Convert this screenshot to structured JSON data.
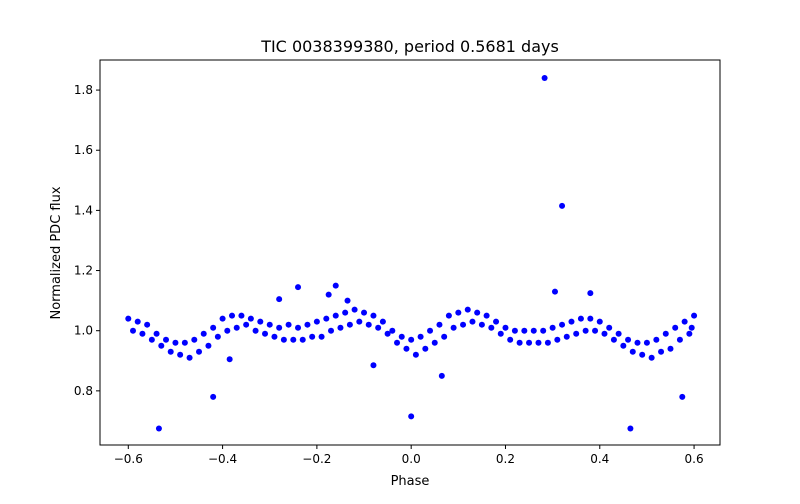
{
  "chart_data": {
    "type": "scatter",
    "title": "TIC 0038399380, period 0.5681 days",
    "xlabel": "Phase",
    "ylabel": "Normalized PDC flux",
    "xlim": [
      -0.66,
      0.655
    ],
    "ylim": [
      0.62,
      1.9
    ],
    "xticks": [
      -0.6,
      -0.4,
      -0.2,
      0.0,
      0.2,
      0.4,
      0.6
    ],
    "xtick_labels": [
      "−0.6",
      "−0.4",
      "−0.2",
      "0.0",
      "0.2",
      "0.4",
      "0.6"
    ],
    "yticks": [
      0.8,
      1.0,
      1.2,
      1.4,
      1.6,
      1.8
    ],
    "ytick_labels": [
      "0.8",
      "1.0",
      "1.2",
      "1.4",
      "1.6",
      "1.8"
    ],
    "grid": false,
    "marker_color": "#0000ff",
    "series": [
      {
        "name": "flux",
        "points": [
          [
            -0.6,
            1.04
          ],
          [
            -0.59,
            1.0
          ],
          [
            -0.58,
            1.03
          ],
          [
            -0.57,
            0.99
          ],
          [
            -0.56,
            1.02
          ],
          [
            -0.55,
            0.97
          ],
          [
            -0.54,
            0.99
          ],
          [
            -0.53,
            0.95
          ],
          [
            -0.52,
            0.97
          ],
          [
            -0.51,
            0.93
          ],
          [
            -0.5,
            0.96
          ],
          [
            -0.49,
            0.92
          ],
          [
            -0.48,
            0.96
          ],
          [
            -0.47,
            0.91
          ],
          [
            -0.46,
            0.97
          ],
          [
            -0.45,
            0.93
          ],
          [
            -0.44,
            0.99
          ],
          [
            -0.43,
            0.95
          ],
          [
            -0.42,
            1.01
          ],
          [
            -0.41,
            0.98
          ],
          [
            -0.4,
            1.04
          ],
          [
            -0.39,
            1.0
          ],
          [
            -0.38,
            1.05
          ],
          [
            -0.37,
            1.01
          ],
          [
            -0.36,
            1.05
          ],
          [
            -0.35,
            1.02
          ],
          [
            -0.34,
            1.04
          ],
          [
            -0.33,
            1.0
          ],
          [
            -0.32,
            1.03
          ],
          [
            -0.31,
            0.99
          ],
          [
            -0.3,
            1.02
          ],
          [
            -0.29,
            0.98
          ],
          [
            -0.28,
            1.01
          ],
          [
            -0.27,
            0.97
          ],
          [
            -0.26,
            1.02
          ],
          [
            -0.25,
            0.97
          ],
          [
            -0.24,
            1.01
          ],
          [
            -0.23,
            0.97
          ],
          [
            -0.22,
            1.02
          ],
          [
            -0.21,
            0.98
          ],
          [
            -0.2,
            1.03
          ],
          [
            -0.19,
            0.98
          ],
          [
            -0.18,
            1.04
          ],
          [
            -0.17,
            1.0
          ],
          [
            -0.16,
            1.05
          ],
          [
            -0.15,
            1.01
          ],
          [
            -0.14,
            1.06
          ],
          [
            -0.13,
            1.02
          ],
          [
            -0.12,
            1.07
          ],
          [
            -0.11,
            1.03
          ],
          [
            -0.1,
            1.06
          ],
          [
            -0.09,
            1.02
          ],
          [
            -0.08,
            1.05
          ],
          [
            -0.07,
            1.01
          ],
          [
            -0.06,
            1.03
          ],
          [
            -0.05,
            0.99
          ],
          [
            -0.04,
            1.0
          ],
          [
            -0.03,
            0.96
          ],
          [
            -0.02,
            0.98
          ],
          [
            -0.01,
            0.94
          ],
          [
            0.0,
            0.97
          ],
          [
            0.01,
            0.92
          ],
          [
            0.02,
            0.98
          ],
          [
            0.03,
            0.94
          ],
          [
            0.04,
            1.0
          ],
          [
            0.05,
            0.96
          ],
          [
            0.06,
            1.02
          ],
          [
            0.07,
            0.98
          ],
          [
            0.08,
            1.05
          ],
          [
            0.09,
            1.01
          ],
          [
            0.1,
            1.06
          ],
          [
            0.11,
            1.02
          ],
          [
            0.12,
            1.07
          ],
          [
            0.13,
            1.03
          ],
          [
            0.14,
            1.06
          ],
          [
            0.15,
            1.02
          ],
          [
            0.16,
            1.05
          ],
          [
            0.17,
            1.01
          ],
          [
            0.18,
            1.03
          ],
          [
            0.19,
            0.99
          ],
          [
            0.2,
            1.01
          ],
          [
            0.21,
            0.97
          ],
          [
            0.22,
            1.0
          ],
          [
            0.23,
            0.96
          ],
          [
            0.24,
            1.0
          ],
          [
            0.25,
            0.96
          ],
          [
            0.26,
            1.0
          ],
          [
            0.27,
            0.96
          ],
          [
            0.28,
            1.0
          ],
          [
            0.29,
            0.96
          ],
          [
            0.3,
            1.01
          ],
          [
            0.31,
            0.97
          ],
          [
            0.32,
            1.02
          ],
          [
            0.33,
            0.98
          ],
          [
            0.34,
            1.03
          ],
          [
            0.35,
            0.99
          ],
          [
            0.36,
            1.04
          ],
          [
            0.37,
            1.0
          ],
          [
            0.38,
            1.04
          ],
          [
            0.39,
            1.0
          ],
          [
            0.4,
            1.03
          ],
          [
            0.41,
            0.99
          ],
          [
            0.42,
            1.01
          ],
          [
            0.43,
            0.97
          ],
          [
            0.44,
            0.99
          ],
          [
            0.45,
            0.95
          ],
          [
            0.46,
            0.97
          ],
          [
            0.47,
            0.93
          ],
          [
            0.48,
            0.96
          ],
          [
            0.49,
            0.92
          ],
          [
            0.5,
            0.96
          ],
          [
            0.51,
            0.91
          ],
          [
            0.52,
            0.97
          ],
          [
            0.53,
            0.93
          ],
          [
            0.54,
            0.99
          ],
          [
            0.55,
            0.94
          ],
          [
            0.56,
            1.01
          ],
          [
            0.57,
            0.97
          ],
          [
            0.58,
            1.03
          ],
          [
            0.59,
            0.99
          ],
          [
            0.6,
            1.05
          ],
          [
            0.595,
            1.01
          ],
          [
            0.283,
            1.84
          ],
          [
            0.32,
            1.415
          ],
          [
            0.305,
            1.13
          ],
          [
            -0.535,
            0.675
          ],
          [
            -0.42,
            0.78
          ],
          [
            0.0,
            0.715
          ],
          [
            0.465,
            0.675
          ],
          [
            0.575,
            0.78
          ],
          [
            0.065,
            0.85
          ],
          [
            -0.08,
            0.885
          ],
          [
            -0.385,
            0.905
          ],
          [
            -0.24,
            1.145
          ],
          [
            -0.16,
            1.15
          ],
          [
            0.38,
            1.125
          ],
          [
            -0.28,
            1.105
          ],
          [
            -0.175,
            1.12
          ],
          [
            -0.135,
            1.1
          ]
        ]
      }
    ]
  }
}
